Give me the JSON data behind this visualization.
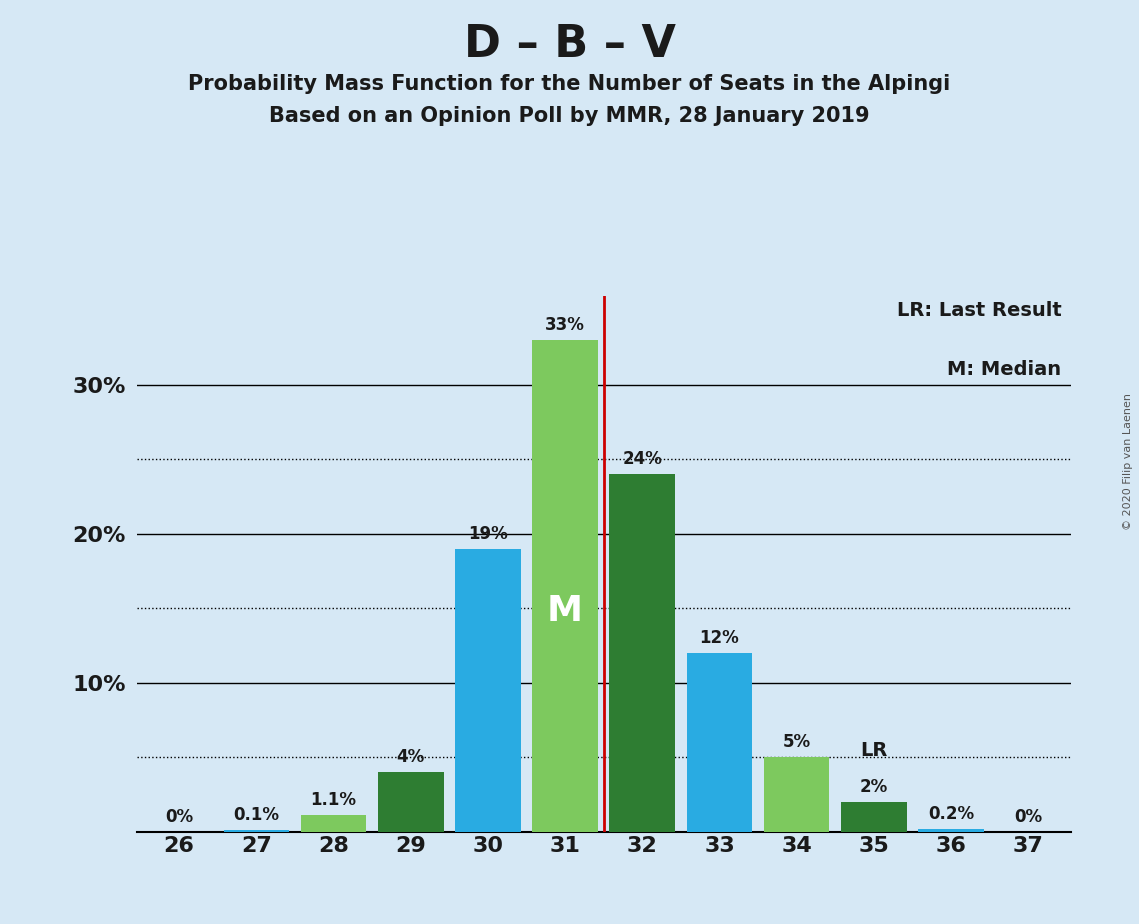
{
  "title": "D – B – V",
  "subtitle1": "Probability Mass Function for the Number of Seats in the Alpingi",
  "subtitle2": "Based on an Opinion Poll by MMR, 28 January 2019",
  "copyright": "© 2020 Filip van Laenen",
  "legend1": "LR: Last Result",
  "legend2": "M: Median",
  "seats": [
    26,
    27,
    28,
    29,
    30,
    31,
    32,
    33,
    34,
    35,
    36,
    37
  ],
  "values": [
    0.001,
    0.1,
    1.1,
    4.0,
    19.0,
    33.0,
    24.0,
    12.0,
    5.0,
    2.0,
    0.2,
    0.001
  ],
  "labels": [
    "0%",
    "0.1%",
    "1.1%",
    "4%",
    "19%",
    "33%",
    "24%",
    "12%",
    "5%",
    "2%",
    "0.2%",
    "0%"
  ],
  "median_seat": 31,
  "last_result_seat": 35,
  "bar_colors": {
    "light_green": "#7DC95E",
    "dark_green": "#2E7D32",
    "cyan": "#29ABE2"
  },
  "color_scheme": [
    "cyan",
    "cyan",
    "light_green",
    "dark_green",
    "cyan",
    "light_green",
    "dark_green",
    "cyan",
    "light_green",
    "dark_green",
    "cyan",
    "cyan"
  ],
  "background_color": "#D6E8F5",
  "ylim": [
    0,
    36
  ],
  "solid_yticks": [
    10,
    20,
    30
  ],
  "dotted_yticks": [
    5,
    15,
    25
  ],
  "vline_color": "#CC0000",
  "median_label_color": "#FFFFFF",
  "median_label": "M"
}
